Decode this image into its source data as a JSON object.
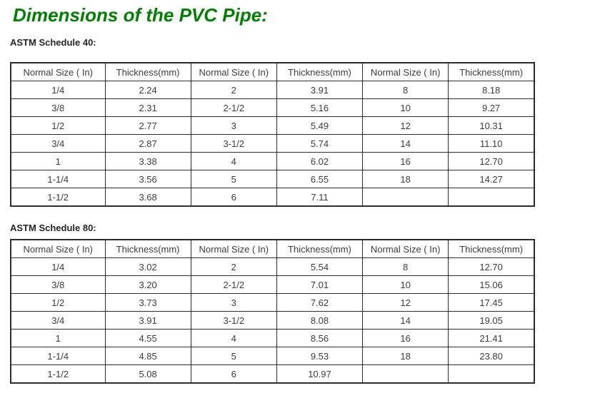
{
  "page": {
    "title": "Dimensions of the PVC Pipe:",
    "title_color": "#008000",
    "text_color": "#3c3c3c",
    "border_color": "#2c2c2c"
  },
  "sections": [
    {
      "label": "ASTM Schedule 40:",
      "table": {
        "headers": [
          "Normal Size ( In)",
          "Thickness(mm)",
          "Normal Size ( In)",
          "Thickness(mm)",
          "Normal Size ( In)",
          "Thickness(mm)"
        ],
        "rows": [
          [
            "1/4",
            "2.24",
            "2",
            "3.91",
            "8",
            "8.18"
          ],
          [
            "3/8",
            "2.31",
            "2-1/2",
            "5.16",
            "10",
            "9.27"
          ],
          [
            "1/2",
            "2.77",
            "3",
            "5.49",
            "12",
            "10.31"
          ],
          [
            "3/4",
            "2.87",
            "3-1/2",
            "5.74",
            "14",
            "11.10"
          ],
          [
            "1",
            "3.38",
            "4",
            "6.02",
            "16",
            "12.70"
          ],
          [
            "1-1/4",
            "3.56",
            "5",
            "6.55",
            "18",
            "14.27"
          ],
          [
            "1-1/2",
            "3.68",
            "6",
            "7.11",
            "",
            ""
          ]
        ]
      }
    },
    {
      "label": "ASTM Schedule 80:",
      "table": {
        "headers": [
          "Normal Size ( In)",
          "Thickness(mm)",
          "Normal Size ( In)",
          "Thickness(mm)",
          "Normal Size ( In)",
          "Thickness(mm)"
        ],
        "rows": [
          [
            "1/4",
            "3.02",
            "2",
            "5.54",
            "8",
            "12.70"
          ],
          [
            "3/8",
            "3.20",
            "2-1/2",
            "7.01",
            "10",
            "15.06"
          ],
          [
            "1/2",
            "3.73",
            "3",
            "7.62",
            "12",
            "17.45"
          ],
          [
            "3/4",
            "3.91",
            "3-1/2",
            "8.08",
            "14",
            "19.05"
          ],
          [
            "1",
            "4.55",
            "4",
            "8.56",
            "16",
            "21.41"
          ],
          [
            "1-1/4",
            "4.85",
            "5",
            "9.53",
            "18",
            "23.80"
          ],
          [
            "1-1/2",
            "5.08",
            "6",
            "10.97",
            "",
            ""
          ]
        ]
      }
    }
  ]
}
